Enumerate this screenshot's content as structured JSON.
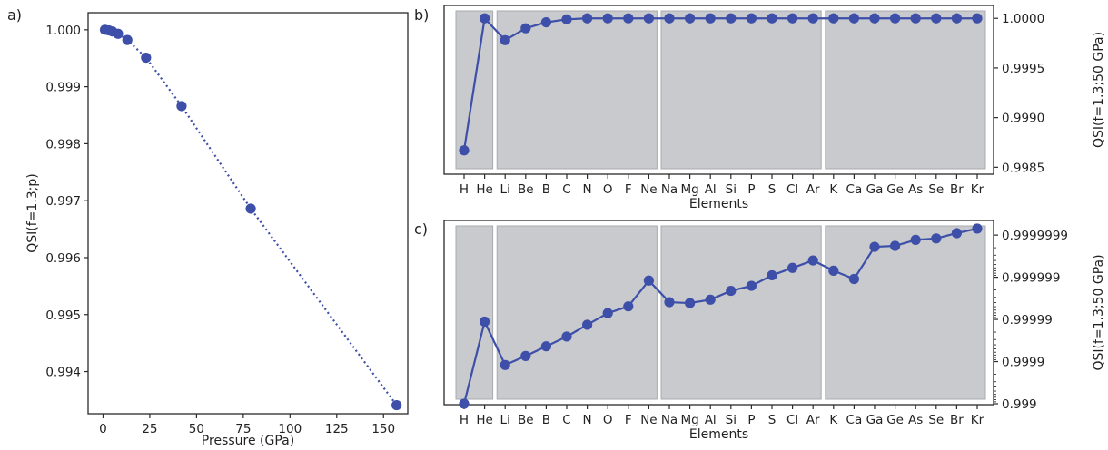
{
  "chart_data": [
    {
      "panel_label": "a)",
      "type": "scatter",
      "connector": "dotted",
      "xlabel": "Pressure (GPa)",
      "ylabel": "QSI(f=1.3;p)",
      "xlim": [
        -8,
        163
      ],
      "ylim": [
        0.99326,
        1.0003
      ],
      "xticks": [
        0,
        25,
        50,
        75,
        100,
        125,
        150
      ],
      "yticks": [
        0.994,
        0.995,
        0.996,
        0.997,
        0.998,
        0.999,
        1.0
      ],
      "ytick_labels": [
        "0.994",
        "0.995",
        "0.996",
        "0.997",
        "0.998",
        "0.999",
        "1.000"
      ],
      "x": [
        1,
        3,
        5,
        8,
        13,
        23,
        42,
        79,
        157
      ],
      "y": [
        1.0,
        0.99999,
        0.99997,
        0.99993,
        0.99982,
        0.99951,
        0.99866,
        0.99686,
        0.99341
      ],
      "color": "#3d4fa8"
    },
    {
      "panel_label": "b)",
      "type": "line",
      "scale": "linear",
      "xlabel": "Elements",
      "ylabel": "QSI(f=1.3;50 GPa)",
      "y_axis_side": "right",
      "categories": [
        "H",
        "He",
        "Li",
        "Be",
        "B",
        "C",
        "N",
        "O",
        "F",
        "Ne",
        "Na",
        "Mg",
        "Al",
        "Si",
        "P",
        "S",
        "Cl",
        "Ar",
        "K",
        "Ca",
        "Ga",
        "Ge",
        "As",
        "Se",
        "Br",
        "Kr"
      ],
      "values": [
        0.99867,
        1.0,
        0.99978,
        0.9999,
        0.99996,
        0.99999,
        1.0,
        1.0,
        1.0,
        1.0,
        1.0,
        1.0,
        1.0,
        1.0,
        1.0,
        1.0,
        1.0,
        1.0,
        1.0,
        1.0,
        1.0,
        1.0,
        1.0,
        1.0,
        1.0,
        1.0
      ],
      "ylim": [
        0.99843,
        1.00013
      ],
      "yticks": [
        0.9985,
        0.999,
        0.9995,
        1.0
      ],
      "ytick_labels": [
        "0.9985",
        "0.9990",
        "0.9995",
        "1.0000"
      ],
      "shaded_blocks": [
        [
          0,
          1
        ],
        [
          2,
          9
        ],
        [
          10,
          17
        ],
        [
          18,
          25
        ]
      ],
      "color": "#3d4fa8"
    },
    {
      "panel_label": "c)",
      "type": "line",
      "scale": "log(1-y)",
      "xlabel": "Elements",
      "ylabel": "QSI(f=1.3;50 GPa)",
      "y_axis_side": "right",
      "categories": [
        "H",
        "He",
        "Li",
        "Be",
        "B",
        "C",
        "N",
        "O",
        "F",
        "Ne",
        "Na",
        "Mg",
        "Al",
        "Si",
        "P",
        "S",
        "Cl",
        "Ar",
        "K",
        "Ca",
        "Ga",
        "Ge",
        "As",
        "Se",
        "Br",
        "Kr"
      ],
      "values": [
        0.999,
        0.9999887,
        0.9998796,
        0.9999263,
        0.9999566,
        0.9999745,
        0.9999866,
        0.9999929,
        0.9999951,
        0.9999988,
        0.9999961,
        0.9999959,
        0.9999966,
        0.9999979,
        0.9999984,
        0.9999991,
        0.9999994,
        0.9999996,
        0.9999993,
        0.9999989,
        0.99999981,
        0.99999982,
        0.99999987,
        0.99999988,
        0.99999991,
        0.99999993
      ],
      "ylim": [
        0.99895,
        0.999999955
      ],
      "yticks": [
        0.999,
        0.9999,
        0.99999,
        0.999999,
        0.9999999
      ],
      "ytick_labels": [
        "0.999",
        "0.9999",
        "0.99999",
        "0.999999",
        "0.9999999"
      ],
      "shaded_blocks": [
        [
          0,
          1
        ],
        [
          2,
          9
        ],
        [
          10,
          17
        ],
        [
          18,
          25
        ]
      ],
      "color": "#3d4fa8"
    }
  ]
}
